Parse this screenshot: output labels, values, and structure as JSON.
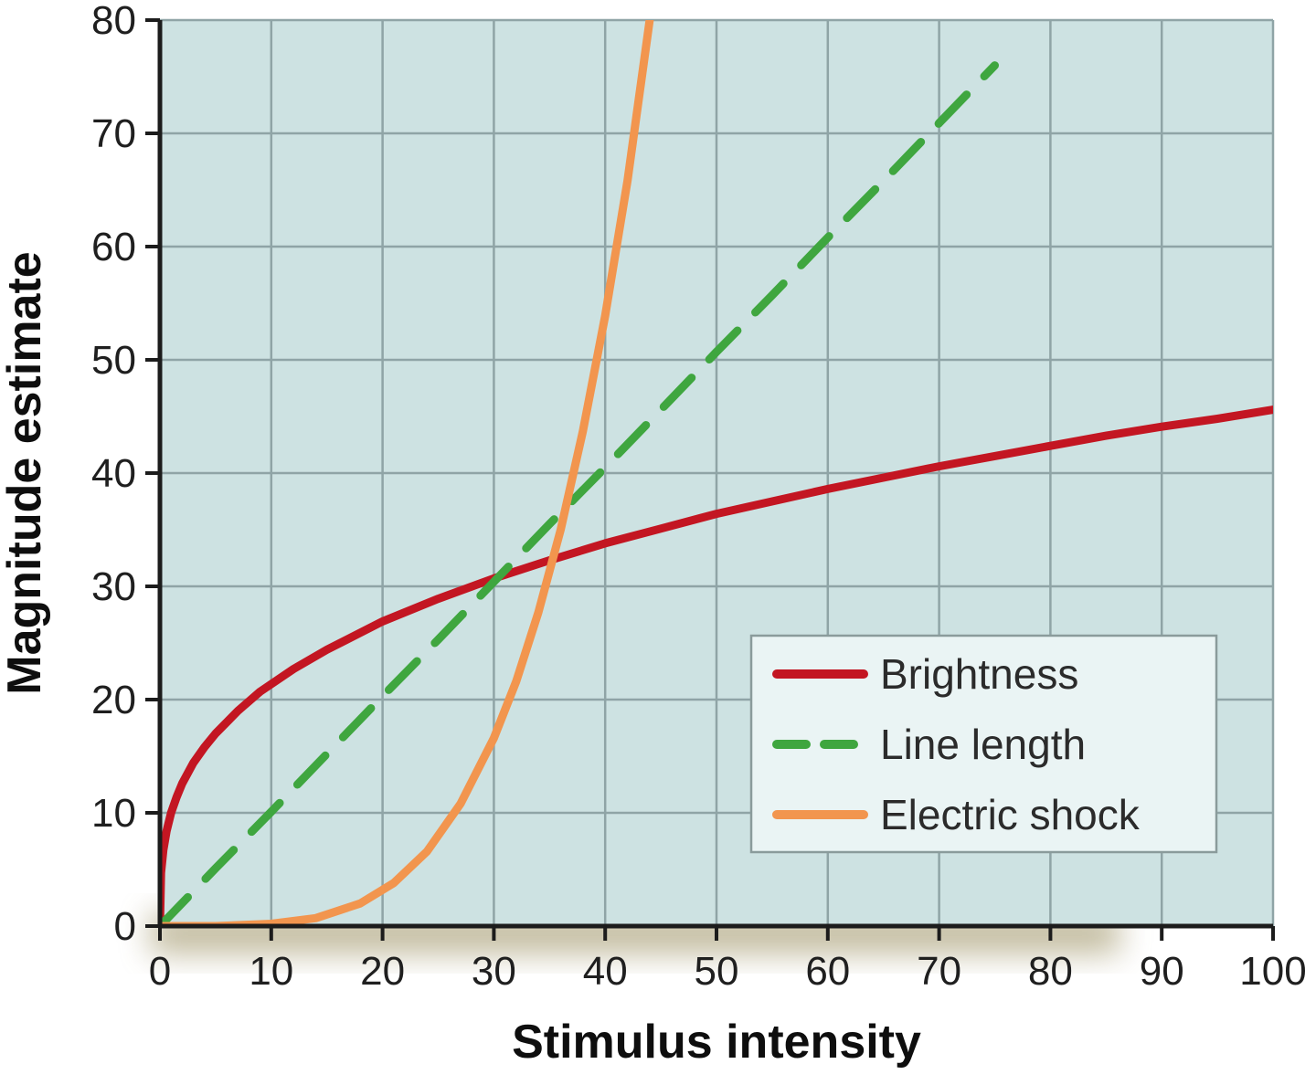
{
  "figure": {
    "background_color": "#ffffff",
    "plot_background_color": "#cde2e2",
    "grid_color": "#8fa4a6",
    "axis_color": "#1c1c1c",
    "tick_label_color": "#1f1f1f",
    "legend_background_color": "#eaf4f4",
    "legend_border_color": "#8a9b9b",
    "shadow_color": "#8f824d"
  },
  "chart_data": {
    "type": "line",
    "title": "",
    "xlabel": "Stimulus intensity",
    "ylabel": "Magnitude estimate",
    "xlim": [
      0,
      100
    ],
    "ylim": [
      0,
      80
    ],
    "x_ticks": [
      0,
      10,
      20,
      30,
      40,
      50,
      60,
      70,
      80,
      90,
      100
    ],
    "y_ticks": [
      0,
      10,
      20,
      30,
      40,
      50,
      60,
      70,
      80
    ],
    "grid": true,
    "legend": {
      "position": "inside-lower-right",
      "entries": [
        "Brightness",
        "Line length",
        "Electric shock"
      ]
    },
    "series": [
      {
        "name": "Brightness",
        "color": "#c31622",
        "style": "solid",
        "points": [
          [
            0,
            0
          ],
          [
            0.1,
            4.7
          ],
          [
            0.3,
            6.7
          ],
          [
            0.6,
            8.4
          ],
          [
            1,
            10
          ],
          [
            1.5,
            11.4
          ],
          [
            2,
            12.6
          ],
          [
            3,
            14.4
          ],
          [
            4,
            15.8
          ],
          [
            5,
            17
          ],
          [
            7,
            19
          ],
          [
            9,
            20.7
          ],
          [
            12,
            22.7
          ],
          [
            15,
            24.4
          ],
          [
            20,
            26.9
          ],
          [
            25,
            28.9
          ],
          [
            30,
            30.7
          ],
          [
            35,
            32.3
          ],
          [
            40,
            33.8
          ],
          [
            45,
            35.1
          ],
          [
            50,
            36.4
          ],
          [
            55,
            37.5
          ],
          [
            60,
            38.6
          ],
          [
            65,
            39.6
          ],
          [
            70,
            40.6
          ],
          [
            75,
            41.5
          ],
          [
            80,
            42.4
          ],
          [
            85,
            43.3
          ],
          [
            90,
            44.1
          ],
          [
            95,
            44.8
          ],
          [
            100,
            45.6
          ]
        ]
      },
      {
        "name": "Line length",
        "color": "#3fa63f",
        "style": "dashed",
        "points": [
          [
            0,
            0
          ],
          [
            5,
            5.1
          ],
          [
            10,
            10.1
          ],
          [
            15,
            15.2
          ],
          [
            20,
            20.3
          ],
          [
            25,
            25.3
          ],
          [
            30,
            30.4
          ],
          [
            35,
            35.5
          ],
          [
            40,
            40.5
          ],
          [
            45,
            45.6
          ],
          [
            50,
            50.7
          ],
          [
            55,
            55.7
          ],
          [
            60,
            60.8
          ],
          [
            65,
            65.8
          ],
          [
            70,
            70.9
          ],
          [
            75,
            76
          ]
        ]
      },
      {
        "name": "Electric shock",
        "color": "#f2954e",
        "style": "solid",
        "points": [
          [
            0,
            0
          ],
          [
            5,
            0
          ],
          [
            10,
            0.2
          ],
          [
            14,
            0.7
          ],
          [
            18,
            2
          ],
          [
            21,
            3.8
          ],
          [
            24,
            6.6
          ],
          [
            27,
            10.8
          ],
          [
            30,
            16.6
          ],
          [
            32,
            21.6
          ],
          [
            34,
            27.7
          ],
          [
            36,
            35
          ],
          [
            38,
            43.7
          ],
          [
            40,
            53.9
          ],
          [
            42,
            65.8
          ],
          [
            44,
            80
          ]
        ]
      }
    ]
  }
}
